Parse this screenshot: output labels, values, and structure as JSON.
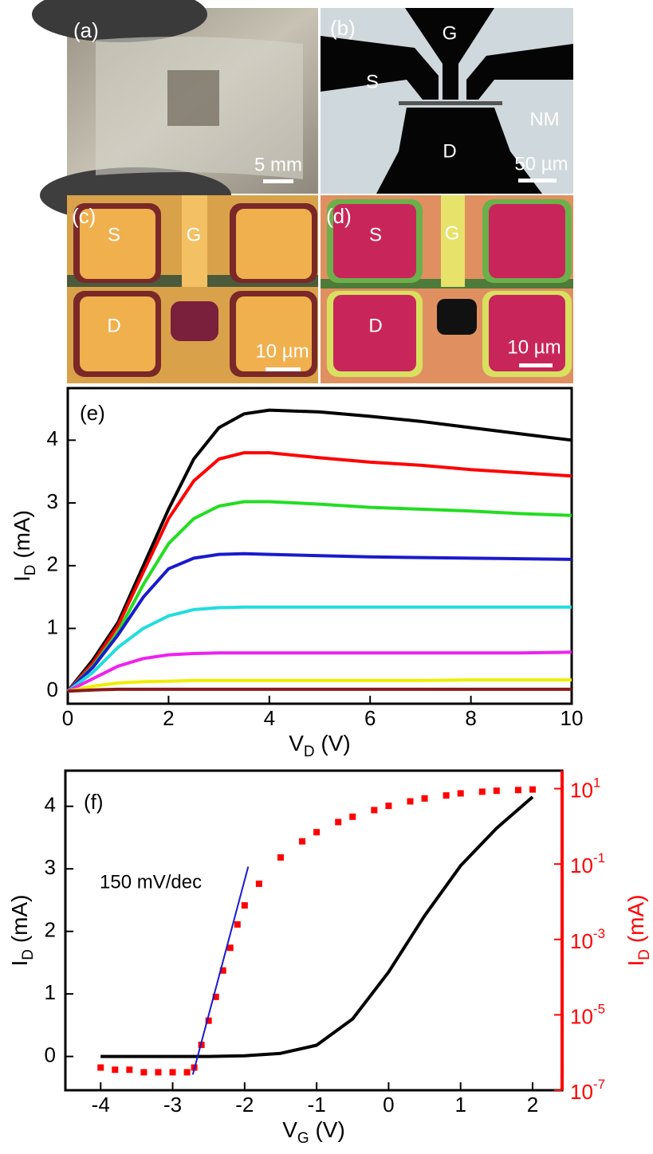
{
  "photo_panels": [
    {
      "label": "(a)",
      "scale_bar": "5 mm"
    },
    {
      "label": "(b)",
      "regions": [
        "G",
        "S",
        "NM",
        "D"
      ],
      "scale_bar": "50 µm"
    },
    {
      "label": "(c)",
      "regions": [
        "S",
        "G",
        "D"
      ],
      "scale_bar": "10 µm"
    },
    {
      "label": "(d)",
      "regions": [
        "S",
        "G",
        "D"
      ],
      "scale_bar": "10 µm"
    }
  ],
  "chart_data": [
    {
      "type": "line",
      "panel_label": "(e)",
      "xlabel": [
        "V",
        "D",
        " (V)"
      ],
      "ylabel": [
        "I",
        "D",
        " (mA)"
      ],
      "x": [
        0,
        0.5,
        1,
        1.5,
        2,
        2.5,
        3,
        3.5,
        4,
        5,
        6,
        7,
        8,
        9,
        10
      ],
      "xlim": [
        0,
        10
      ],
      "xticks": [
        0,
        2,
        4,
        6,
        8,
        10
      ],
      "ylim": [
        -0.2,
        4.83
      ],
      "yticks": [
        0,
        1,
        2,
        3,
        4
      ],
      "series": [
        {
          "color": "#000000",
          "values": [
            0,
            0.5,
            1.1,
            2.0,
            2.9,
            3.7,
            4.2,
            4.42,
            4.48,
            4.45,
            4.38,
            4.3,
            4.2,
            4.1,
            4.0
          ]
        },
        {
          "color": "#ff0000",
          "values": [
            0,
            0.45,
            1.05,
            1.9,
            2.75,
            3.35,
            3.7,
            3.8,
            3.8,
            3.72,
            3.65,
            3.6,
            3.53,
            3.48,
            3.43
          ]
        },
        {
          "color": "#22dd22",
          "values": [
            0,
            0.4,
            0.95,
            1.7,
            2.35,
            2.75,
            2.95,
            3.02,
            3.02,
            2.98,
            2.93,
            2.9,
            2.87,
            2.83,
            2.8
          ]
        },
        {
          "color": "#1a1acc",
          "values": [
            0,
            0.38,
            0.9,
            1.5,
            1.95,
            2.12,
            2.18,
            2.19,
            2.18,
            2.16,
            2.14,
            2.13,
            2.12,
            2.11,
            2.1
          ]
        },
        {
          "color": "#22dddd",
          "values": [
            0,
            0.3,
            0.7,
            1.0,
            1.2,
            1.3,
            1.33,
            1.34,
            1.34,
            1.34,
            1.34,
            1.34,
            1.34,
            1.34,
            1.34
          ]
        },
        {
          "color": "#ee22ee",
          "values": [
            0,
            0.2,
            0.4,
            0.52,
            0.58,
            0.6,
            0.61,
            0.61,
            0.61,
            0.61,
            0.61,
            0.61,
            0.61,
            0.61,
            0.62
          ]
        },
        {
          "color": "#eeee00",
          "values": [
            0,
            0.08,
            0.13,
            0.15,
            0.16,
            0.17,
            0.17,
            0.17,
            0.17,
            0.17,
            0.17,
            0.17,
            0.18,
            0.18,
            0.18
          ]
        },
        {
          "color": "#8b1a1a",
          "values": [
            0,
            0.02,
            0.03,
            0.03,
            0.03,
            0.03,
            0.03,
            0.03,
            0.03,
            0.03,
            0.03,
            0.03,
            0.03,
            0.03,
            0.03
          ]
        }
      ]
    },
    {
      "type": "line",
      "panel_label": "(f)",
      "annotation": "150 mV/dec",
      "xlabel": [
        "V",
        "G",
        " (V)"
      ],
      "ylabel": [
        "I",
        "D",
        " (mA)"
      ],
      "y2label": [
        "I",
        "D",
        " (mA)"
      ],
      "xlim": [
        -4.49,
        2.41
      ],
      "xticks": [
        -4,
        -3,
        -2,
        -1,
        0,
        1,
        2
      ],
      "ylim": [
        -0.54,
        4.57
      ],
      "yticks": [
        0,
        1,
        2,
        3,
        4
      ],
      "y2lim": [
        1e-07,
        30
      ],
      "y2scale": "log",
      "y2color": "#ff0000",
      "y2ticks": [
        {
          "value": 10,
          "label": [
            "10",
            "1"
          ]
        },
        {
          "value": 0.1,
          "label": [
            "10",
            "-1"
          ]
        },
        {
          "value": 0.001,
          "label": [
            "10",
            "-3"
          ]
        },
        {
          "value": 1e-05,
          "label": [
            "10",
            "-5"
          ]
        },
        {
          "value": 1e-07,
          "label": [
            "10",
            "-7"
          ]
        }
      ],
      "series": [
        {
          "color": "#000000",
          "x": [
            -4,
            -3.5,
            -3,
            -2.5,
            -2,
            -1.5,
            -1,
            -0.5,
            0,
            0.5,
            1,
            1.5,
            2
          ],
          "values": [
            0,
            0,
            0,
            0,
            0.01,
            0.05,
            0.18,
            0.6,
            1.35,
            2.25,
            3.05,
            3.65,
            4.15
          ]
        },
        {
          "color": "#ff0000",
          "axis": "y2",
          "marker": "square",
          "x": [
            -4,
            -3.8,
            -3.6,
            -3.4,
            -3.2,
            -3,
            -2.8,
            -2.7,
            -2.6,
            -2.5,
            -2.4,
            -2.3,
            -2.2,
            -2.1,
            -2,
            -1.8,
            -1.5,
            -1.2,
            -1,
            -0.7,
            -0.5,
            -0.2,
            0,
            0.3,
            0.5,
            0.8,
            1,
            1.3,
            1.5,
            1.8,
            2
          ],
          "values": [
            4e-07,
            3.5e-07,
            3.5e-07,
            3e-07,
            3e-07,
            3e-07,
            3e-07,
            4e-07,
            1.6e-06,
            7e-06,
            3e-05,
            0.00015,
            0.0006,
            0.0025,
            0.008,
            0.03,
            0.15,
            0.4,
            0.7,
            1.3,
            1.8,
            2.7,
            3.5,
            4.6,
            5.5,
            6.6,
            7.5,
            8.3,
            8.8,
            9.2,
            9.5
          ]
        },
        {
          "color": "#1a1acc",
          "axis": "y2",
          "x": [
            -2.72,
            -1.95
          ],
          "values": [
            2.6e-07,
            0.085
          ]
        }
      ]
    }
  ]
}
